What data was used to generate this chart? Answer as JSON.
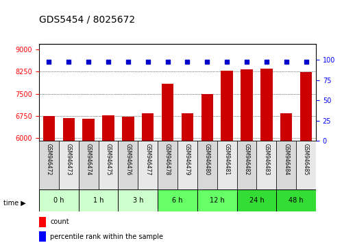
{
  "title": "GDS5454 / 8025672",
  "samples": [
    "GSM946472",
    "GSM946473",
    "GSM946474",
    "GSM946475",
    "GSM946476",
    "GSM946477",
    "GSM946478",
    "GSM946479",
    "GSM946480",
    "GSM946481",
    "GSM946482",
    "GSM946483",
    "GSM946484",
    "GSM946485"
  ],
  "counts": [
    6750,
    6680,
    6650,
    6780,
    6730,
    6850,
    7850,
    6850,
    7500,
    8280,
    8330,
    8350,
    6830,
    8240
  ],
  "percentile_ranks": [
    100,
    100,
    100,
    100,
    100,
    100,
    100,
    100,
    100,
    100,
    100,
    100,
    100,
    100
  ],
  "time_groups": [
    {
      "label": "0 h",
      "start": 0,
      "end": 2,
      "color": "#ccffcc"
    },
    {
      "label": "1 h",
      "start": 2,
      "end": 4,
      "color": "#ccffcc"
    },
    {
      "label": "3 h",
      "start": 4,
      "end": 6,
      "color": "#ccffcc"
    },
    {
      "label": "6 h",
      "start": 6,
      "end": 8,
      "color": "#66ff66"
    },
    {
      "label": "12 h",
      "start": 8,
      "end": 10,
      "color": "#66ff66"
    },
    {
      "label": "24 h",
      "start": 10,
      "end": 12,
      "color": "#33dd33"
    },
    {
      "label": "48 h",
      "start": 12,
      "end": 14,
      "color": "#33dd33"
    }
  ],
  "bar_color": "#cc0000",
  "dot_color": "#0000cc",
  "ylim_left": [
    5900,
    9200
  ],
  "yticks_left": [
    6000,
    6750,
    7500,
    8250,
    9000
  ],
  "ylim_right": [
    0,
    120
  ],
  "yticks_right": [
    0,
    25,
    50,
    75,
    100
  ],
  "grid_color": "#000000",
  "bg_color": "#ffffff",
  "plot_bg": "#ffffff"
}
